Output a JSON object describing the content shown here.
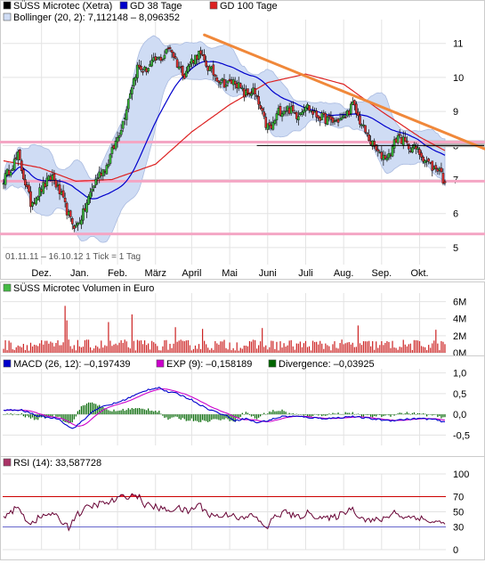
{
  "colors": {
    "price": "#000000",
    "gd38": "#0000cc",
    "gd100": "#dd2222",
    "bollinger_fill": "#cfdcf4",
    "bollinger_edge": "#aabbe0",
    "trend": "#f0883a",
    "levels": "#f4a6c4",
    "volume": "#cc2222",
    "macd": "#0000cc",
    "exp": "#cc00cc",
    "divergence": "#006600",
    "rsi": "#660033",
    "rsi_band": "#cc0000",
    "rsi_low": "#6666cc",
    "grid": "#e3e3e3",
    "frame": "#cccccc"
  },
  "chart_data": [
    {
      "panel": "price",
      "type": "candlestick",
      "legend": [
        {
          "label": "SÜSS Microtec (Xetra)",
          "swatch": "price"
        },
        {
          "label": "GD 38 Tage",
          "swatch": "gd38"
        },
        {
          "label": "GD 100 Tage",
          "swatch": "gd100"
        }
      ],
      "bollinger_label": "Bollinger (20, 2): 7,112148 – 8,096352",
      "date_note": "01.11.11 – 16.10.12   1 Tick = 1 Tag",
      "months": [
        "Dez.",
        "Jan.",
        "Feb.",
        "März",
        "April",
        "Mai",
        "Juni",
        "Juli",
        "Aug.",
        "Sep.",
        "Okt."
      ],
      "month_starts": [
        21,
        42,
        63,
        84,
        104,
        125,
        146,
        167,
        188,
        209,
        230
      ],
      "days": 245,
      "yticks": [
        5,
        6,
        7,
        8,
        9,
        10,
        11
      ],
      "ylim": [
        4.5,
        11.7
      ],
      "anchors": [
        [
          0,
          7.0
        ],
        [
          8,
          7.7
        ],
        [
          15,
          6.3
        ],
        [
          22,
          6.8
        ],
        [
          27,
          7.1
        ],
        [
          32,
          6.5
        ],
        [
          37,
          5.8
        ],
        [
          40,
          5.6
        ],
        [
          44,
          6.0
        ],
        [
          48,
          6.6
        ],
        [
          52,
          7.1
        ],
        [
          57,
          7.4
        ],
        [
          62,
          8.1
        ],
        [
          66,
          8.7
        ],
        [
          70,
          9.6
        ],
        [
          74,
          10.3
        ],
        [
          78,
          10.2
        ],
        [
          84,
          10.5
        ],
        [
          88,
          10.6
        ],
        [
          92,
          10.9
        ],
        [
          96,
          10.4
        ],
        [
          100,
          10.1
        ],
        [
          104,
          10.5
        ],
        [
          108,
          10.7
        ],
        [
          113,
          10.3
        ],
        [
          118,
          10.0
        ],
        [
          123,
          9.8
        ],
        [
          128,
          9.9
        ],
        [
          133,
          9.5
        ],
        [
          138,
          9.6
        ],
        [
          141,
          9.2
        ],
        [
          145,
          8.6
        ],
        [
          148,
          8.5
        ],
        [
          152,
          9.0
        ],
        [
          157,
          9.1
        ],
        [
          162,
          8.9
        ],
        [
          167,
          9.2
        ],
        [
          172,
          8.9
        ],
        [
          177,
          8.8
        ],
        [
          182,
          8.7
        ],
        [
          188,
          8.8
        ],
        [
          193,
          9.2
        ],
        [
          198,
          8.6
        ],
        [
          203,
          8.1
        ],
        [
          208,
          7.7
        ],
        [
          213,
          7.7
        ],
        [
          218,
          8.3
        ],
        [
          223,
          8.0
        ],
        [
          228,
          7.9
        ],
        [
          233,
          7.6
        ],
        [
          238,
          7.3
        ],
        [
          241,
          7.35
        ],
        [
          243,
          7.0
        ],
        [
          244,
          6.9
        ]
      ],
      "gd38_last": 7.75,
      "gd100_points": [
        [
          0,
          7.55
        ],
        [
          20,
          7.35
        ],
        [
          40,
          6.95
        ],
        [
          60,
          7.0
        ],
        [
          84,
          7.45
        ],
        [
          104,
          8.4
        ],
        [
          125,
          9.2
        ],
        [
          146,
          9.85
        ],
        [
          167,
          10.1
        ],
        [
          188,
          9.8
        ],
        [
          209,
          9.0
        ],
        [
          230,
          8.25
        ],
        [
          244,
          7.85
        ]
      ],
      "trendline": {
        "from": [
          111,
          11.25
        ],
        "to": [
          266,
          7.9
        ]
      },
      "support_lines": [
        8.1,
        6.95,
        5.4
      ],
      "horizontal_marker": {
        "from": 140,
        "to": 266,
        "value": 8.0
      },
      "gray_zone": {
        "from_value": 8.15,
        "to_value": 7.95,
        "x_from": 232
      }
    },
    {
      "panel": "volume",
      "type": "bar",
      "title": "SÜSS Microtec Volumen in Euro",
      "yticks": [
        "6M",
        "4M",
        "2M",
        "0M"
      ],
      "ytick_values": [
        6,
        4,
        2,
        0
      ],
      "unit": "Mio. Euro",
      "ylim": [
        0,
        7
      ],
      "spikes": [
        [
          34,
          5.5
        ],
        [
          35,
          3.8
        ],
        [
          58,
          3.6
        ],
        [
          71,
          4.5
        ],
        [
          95,
          3.0
        ],
        [
          110,
          2.8
        ],
        [
          143,
          2.9
        ],
        [
          196,
          3.2
        ],
        [
          239,
          2.7
        ]
      ]
    },
    {
      "panel": "macd",
      "type": "line",
      "legend": [
        {
          "label": "MACD (26, 12): –0,197439",
          "swatch": "macd"
        },
        {
          "label": "EXP (9): –0,158189",
          "swatch": "exp"
        },
        {
          "label": "Divergence: –0,03925",
          "swatch": "divergence"
        }
      ],
      "yticks": [
        "1,0",
        "0,5",
        "0,0",
        "-0,5"
      ],
      "ytick_values": [
        1.0,
        0.5,
        0.0,
        -0.5
      ],
      "ylim": [
        -0.75,
        1.1
      ],
      "anchors": [
        [
          0,
          0.1
        ],
        [
          10,
          0.1
        ],
        [
          20,
          -0.05
        ],
        [
          30,
          -0.1
        ],
        [
          38,
          -0.35
        ],
        [
          44,
          -0.15
        ],
        [
          50,
          0.1
        ],
        [
          56,
          0.2
        ],
        [
          64,
          0.3
        ],
        [
          72,
          0.45
        ],
        [
          80,
          0.6
        ],
        [
          86,
          0.65
        ],
        [
          90,
          0.55
        ],
        [
          96,
          0.5
        ],
        [
          104,
          0.35
        ],
        [
          112,
          0.15
        ],
        [
          118,
          0.05
        ],
        [
          124,
          -0.05
        ],
        [
          128,
          -0.15
        ],
        [
          134,
          -0.1
        ],
        [
          140,
          -0.2
        ],
        [
          146,
          -0.15
        ],
        [
          154,
          -0.05
        ],
        [
          162,
          -0.05
        ],
        [
          170,
          -0.08
        ],
        [
          178,
          -0.1
        ],
        [
          186,
          -0.08
        ],
        [
          192,
          -0.05
        ],
        [
          198,
          -0.08
        ],
        [
          206,
          -0.12
        ],
        [
          214,
          -0.15
        ],
        [
          222,
          -0.12
        ],
        [
          230,
          -0.1
        ],
        [
          238,
          -0.12
        ],
        [
          244,
          -0.197
        ]
      ]
    },
    {
      "panel": "rsi",
      "type": "line",
      "legend": [
        {
          "label": "RSI (14): 33,587728",
          "swatch": "rsi"
        }
      ],
      "yticks": [
        "100",
        "70",
        "50",
        "30",
        "0"
      ],
      "ytick_values": [
        100,
        70,
        50,
        30,
        0
      ],
      "bands": [
        70,
        30
      ],
      "ylim": [
        0,
        100
      ],
      "anchors": [
        [
          0,
          45
        ],
        [
          8,
          55
        ],
        [
          14,
          35
        ],
        [
          20,
          42
        ],
        [
          26,
          48
        ],
        [
          32,
          38
        ],
        [
          36,
          30
        ],
        [
          40,
          45
        ],
        [
          46,
          55
        ],
        [
          52,
          60
        ],
        [
          58,
          62
        ],
        [
          64,
          68
        ],
        [
          70,
          72
        ],
        [
          74,
          71
        ],
        [
          78,
          60
        ],
        [
          84,
          56
        ],
        [
          90,
          52
        ],
        [
          96,
          55
        ],
        [
          102,
          50
        ],
        [
          108,
          60
        ],
        [
          114,
          46
        ],
        [
          120,
          44
        ],
        [
          126,
          48
        ],
        [
          132,
          40
        ],
        [
          138,
          46
        ],
        [
          142,
          35
        ],
        [
          146,
          30
        ],
        [
          150,
          44
        ],
        [
          156,
          50
        ],
        [
          162,
          42
        ],
        [
          168,
          48
        ],
        [
          174,
          44
        ],
        [
          180,
          40
        ],
        [
          186,
          46
        ],
        [
          192,
          55
        ],
        [
          198,
          42
        ],
        [
          204,
          38
        ],
        [
          210,
          40
        ],
        [
          216,
          50
        ],
        [
          222,
          42
        ],
        [
          228,
          44
        ],
        [
          234,
          38
        ],
        [
          240,
          36
        ],
        [
          244,
          33.6
        ]
      ]
    }
  ]
}
